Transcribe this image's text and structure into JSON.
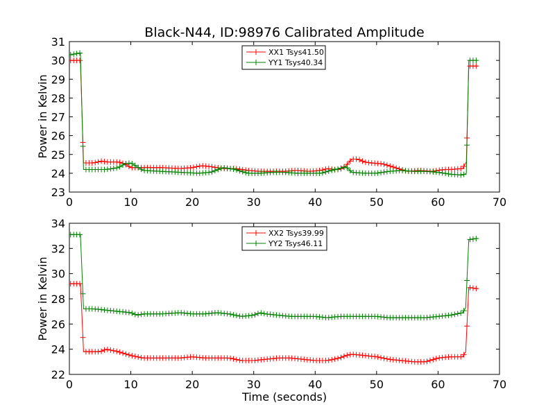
{
  "chart_data": [
    {
      "type": "line",
      "title": "Black-N44, ID:98976 Calibrated Amplitude",
      "xlabel": "",
      "ylabel": "Power in Kelvin",
      "xlim": [
        0,
        70
      ],
      "ylim": [
        23,
        31
      ],
      "xticks": [
        "0",
        "10",
        "20",
        "30",
        "40",
        "50",
        "60",
        "70"
      ],
      "yticks": [
        "23",
        "24",
        "25",
        "26",
        "27",
        "28",
        "29",
        "30",
        "31"
      ],
      "legend_position": "top-center",
      "series": [
        {
          "name": "XX1 Tsys41.50",
          "color": "#ff0000",
          "x": [
            0.2,
            1.8,
            2.3,
            4,
            5.3,
            6,
            8,
            9,
            10,
            12,
            15,
            18,
            20,
            21.5,
            23,
            25,
            27,
            29,
            31,
            33,
            35,
            37,
            39,
            41,
            42,
            43,
            44,
            45,
            46,
            47,
            48,
            49,
            51,
            53,
            55,
            57,
            59,
            61,
            62,
            64,
            64.6,
            65,
            66.5
          ],
          "y": [
            30.0,
            30.0,
            24.55,
            24.55,
            24.65,
            24.6,
            24.6,
            24.5,
            24.3,
            24.3,
            24.3,
            24.25,
            24.3,
            24.4,
            24.35,
            24.25,
            24.25,
            24.15,
            24.1,
            24.1,
            24.1,
            24.15,
            24.1,
            24.15,
            24.25,
            24.2,
            24.2,
            24.4,
            24.75,
            24.75,
            24.6,
            24.55,
            24.5,
            24.3,
            24.1,
            24.15,
            24.1,
            24.2,
            24.2,
            24.25,
            24.6,
            29.7,
            29.7
          ]
        },
        {
          "name": "YY1 Tsys40.34",
          "color": "#008000",
          "x": [
            0.2,
            1.8,
            2.0,
            2.3,
            4,
            6,
            8,
            9,
            10,
            11,
            12,
            15,
            18,
            21,
            23,
            25,
            27,
            29,
            31,
            33,
            35,
            37,
            39,
            41,
            42,
            44,
            45,
            46,
            48,
            50,
            52,
            54,
            56,
            58,
            60,
            62,
            64,
            64.6,
            65,
            66.5
          ],
          "y": [
            30.3,
            30.4,
            27.9,
            24.2,
            24.2,
            24.2,
            24.3,
            24.5,
            24.55,
            24.35,
            24.15,
            24.1,
            24.05,
            24.0,
            24.05,
            24.3,
            24.2,
            24.0,
            24.0,
            24.05,
            24.05,
            24.0,
            24.0,
            24.0,
            24.1,
            24.25,
            24.35,
            24.05,
            24.0,
            24.0,
            24.1,
            24.15,
            24.1,
            24.1,
            24.05,
            23.95,
            23.9,
            24.0,
            30.0,
            30.0
          ]
        }
      ]
    },
    {
      "type": "line",
      "title": "",
      "xlabel": "Time (seconds)",
      "ylabel": "Power in Kelvin",
      "xlim": [
        0,
        70
      ],
      "ylim": [
        22,
        34
      ],
      "xticks": [
        "0",
        "10",
        "20",
        "30",
        "40",
        "50",
        "60",
        "70"
      ],
      "yticks": [
        "22",
        "24",
        "26",
        "28",
        "30",
        "32",
        "34"
      ],
      "legend_position": "top-center",
      "series": [
        {
          "name": "XX2 Tsys39.99",
          "color": "#ff0000",
          "x": [
            0.2,
            1.8,
            2.0,
            2.3,
            4,
            5,
            6,
            8,
            10,
            12,
            15,
            18,
            20,
            22,
            24,
            26,
            28,
            30,
            32,
            34,
            36,
            38,
            40,
            42,
            44,
            45,
            46,
            48,
            50,
            52,
            54,
            56,
            58,
            60,
            62,
            64,
            64.5,
            65,
            66.5
          ],
          "y": [
            29.2,
            29.2,
            27.2,
            23.8,
            23.8,
            23.8,
            24.0,
            23.8,
            23.5,
            23.3,
            23.3,
            23.3,
            23.4,
            23.3,
            23.3,
            23.3,
            23.1,
            23.1,
            23.2,
            23.3,
            23.3,
            23.2,
            23.1,
            23.1,
            23.3,
            23.5,
            23.6,
            23.5,
            23.4,
            23.2,
            23.1,
            23.0,
            23.0,
            23.3,
            23.4,
            23.4,
            23.8,
            28.9,
            28.8
          ]
        },
        {
          "name": "YY2 Tsys46.11",
          "color": "#008000",
          "x": [
            0.2,
            1.8,
            2.0,
            2.3,
            4,
            6,
            8,
            10,
            11,
            12,
            15,
            18,
            20,
            22,
            24,
            26,
            28,
            30,
            31,
            32,
            34,
            36,
            38,
            40,
            42,
            44,
            46,
            48,
            50,
            52,
            54,
            56,
            58,
            60,
            62,
            64,
            64.5,
            65,
            66.5
          ],
          "y": [
            33.1,
            33.1,
            30.8,
            27.2,
            27.2,
            27.1,
            27.0,
            26.9,
            26.7,
            26.8,
            26.8,
            26.9,
            26.8,
            26.8,
            26.9,
            26.8,
            26.6,
            26.7,
            26.9,
            26.8,
            26.7,
            26.6,
            26.6,
            26.6,
            26.5,
            26.6,
            26.6,
            26.6,
            26.6,
            26.5,
            26.5,
            26.5,
            26.5,
            26.6,
            26.7,
            26.9,
            27.3,
            32.7,
            32.8
          ]
        }
      ]
    }
  ]
}
